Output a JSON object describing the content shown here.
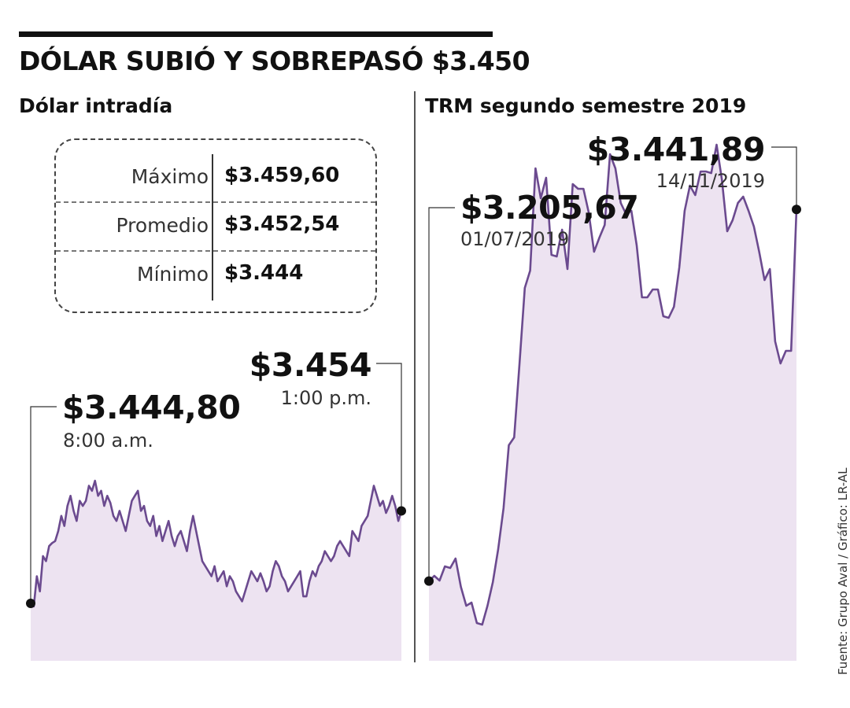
{
  "header": {
    "title": "DÓLAR SUBIÓ Y SOBREPASÓ $3.450",
    "left_subtitle": "Dólar intradía",
    "right_subtitle": "TRM segundo semestre 2019"
  },
  "stats": [
    {
      "label": "Máximo",
      "value": "$3.459,60"
    },
    {
      "label": "Promedio",
      "value": "$3.452,54"
    },
    {
      "label": "Mínimo",
      "value": "$3.444"
    }
  ],
  "annotations": {
    "left_start_value": "$3.444,80",
    "left_start_time": "8:00 a.m.",
    "left_end_value": "$3.454",
    "left_end_time": "1:00 p.m.",
    "right_start_value": "$3.205,67",
    "right_start_date": "01/07/2019",
    "right_end_value": "$3.441,89",
    "right_end_date": "14/11/2019"
  },
  "source": "Fuente: Grupo Aval / Gráfico: LR-AL",
  "colors": {
    "line": "#6b4a8f",
    "fill": "#ede3f1",
    "accent": "#111111"
  },
  "chart_data": [
    {
      "type": "area",
      "title": "Dólar intradía",
      "x_start": "8:00 a.m.",
      "x_end": "1:00 p.m.",
      "ylim": [
        3443,
        3461
      ],
      "start_value": 3444.8,
      "end_value": 3454,
      "values": [
        3444.8,
        3444.5,
        3447.5,
        3446.0,
        3449.5,
        3449.0,
        3450.5,
        3450.8,
        3451.0,
        3452.0,
        3453.5,
        3452.5,
        3454.5,
        3455.5,
        3454.0,
        3453.0,
        3455.0,
        3454.5,
        3455.0,
        3456.5,
        3456.0,
        3457.0,
        3455.5,
        3456.0,
        3454.5,
        3455.5,
        3454.8,
        3453.5,
        3453.0,
        3454.0,
        3453.0,
        3452.0,
        3453.5,
        3455.0,
        3455.5,
        3456.0,
        3454.0,
        3454.5,
        3453.0,
        3452.5,
        3453.5,
        3451.5,
        3452.5,
        3451.0,
        3452.0,
        3453.0,
        3451.5,
        3450.5,
        3451.5,
        3452.0,
        3451.0,
        3450.0,
        3452.0,
        3453.5,
        3452.0,
        3450.5,
        3449.0,
        3448.5,
        3448.0,
        3447.5,
        3448.5,
        3447.0,
        3447.5,
        3448.0,
        3446.5,
        3447.5,
        3447.0,
        3446.0,
        3445.5,
        3445.0,
        3446.0,
        3447.0,
        3448.0,
        3447.5,
        3447.0,
        3447.8,
        3447.0,
        3446.0,
        3446.5,
        3448.0,
        3449.0,
        3448.5,
        3447.5,
        3447.0,
        3446.0,
        3446.5,
        3447.0,
        3447.5,
        3448.0,
        3445.5,
        3445.5,
        3447.0,
        3448.0,
        3447.5,
        3448.5,
        3449.0,
        3450.0,
        3449.5,
        3449.0,
        3449.5,
        3450.5,
        3451.0,
        3450.5,
        3450.0,
        3449.5,
        3452.0,
        3451.5,
        3451.0,
        3452.5,
        3453.0,
        3453.5,
        3455.0,
        3456.5,
        3455.5,
        3454.5,
        3455.0,
        3453.8,
        3454.5,
        3455.5,
        3454.5,
        3453.0,
        3454.0
      ]
    },
    {
      "type": "area",
      "title": "TRM segundo semestre 2019",
      "x_start": "01/07/2019",
      "x_end": "14/11/2019",
      "ylim": [
        3170,
        3490
      ],
      "start_value": 3205.67,
      "end_value": 3441.89,
      "values": [
        3205.67,
        3209,
        3206,
        3215,
        3214,
        3220,
        3202,
        3190,
        3192,
        3179,
        3178,
        3190,
        3205,
        3226,
        3252,
        3292,
        3297,
        3344,
        3392,
        3403,
        3468,
        3449,
        3462,
        3413,
        3412,
        3429,
        3404,
        3458,
        3455,
        3455,
        3440,
        3415,
        3424,
        3432,
        3477,
        3468,
        3446,
        3439,
        3441,
        3419,
        3386,
        3386,
        3391,
        3391,
        3374,
        3373,
        3380,
        3405,
        3441,
        3457,
        3451,
        3466,
        3466,
        3465,
        3483,
        3461,
        3428,
        3435,
        3446,
        3450,
        3441,
        3431,
        3415,
        3397,
        3404,
        3358,
        3344,
        3352,
        3352,
        3441.89
      ]
    }
  ]
}
